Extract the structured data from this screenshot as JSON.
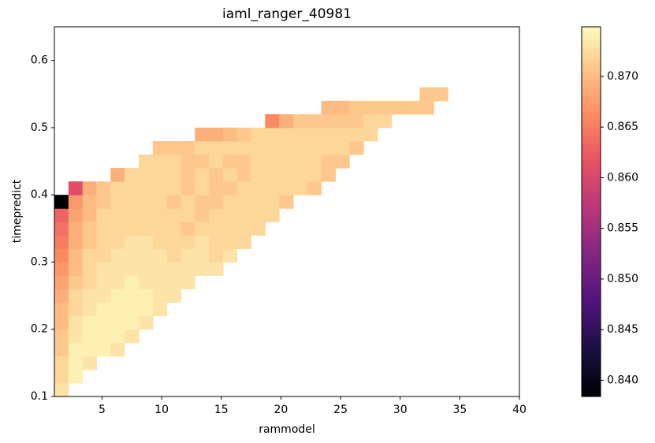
{
  "chart_data": {
    "type": "heatmap",
    "title": "iaml_ranger_40981",
    "x_label": "rammodel",
    "y_label": "timepredict",
    "x": [
      1.59,
      2.77,
      3.95,
      5.12,
      6.3,
      7.48,
      8.66,
      9.84,
      11.01,
      12.19,
      13.37,
      14.55,
      15.73,
      16.9,
      18.08,
      19.26,
      20.44,
      21.62,
      22.79,
      23.97,
      25.15,
      26.33,
      27.51,
      28.68,
      29.86,
      31.04,
      32.22,
      33.4
    ],
    "y": [
      0.11,
      0.13,
      0.15,
      0.17,
      0.19,
      0.21,
      0.23,
      0.25,
      0.27,
      0.29,
      0.31,
      0.33,
      0.35,
      0.37,
      0.39,
      0.41,
      0.43,
      0.45,
      0.47,
      0.49,
      0.51,
      0.53,
      0.55
    ],
    "z": [
      [
        0.873,
        null,
        null,
        null,
        null,
        null,
        null,
        null,
        null,
        null,
        null,
        null,
        null,
        null,
        null,
        null,
        null,
        null,
        null,
        null,
        null,
        null,
        null,
        null,
        null,
        null,
        null,
        null
      ],
      [
        0.872,
        0.874,
        null,
        null,
        null,
        null,
        null,
        null,
        null,
        null,
        null,
        null,
        null,
        null,
        null,
        null,
        null,
        null,
        null,
        null,
        null,
        null,
        null,
        null,
        null,
        null,
        null,
        null
      ],
      [
        0.872,
        0.874,
        0.873,
        null,
        null,
        null,
        null,
        null,
        null,
        null,
        null,
        null,
        null,
        null,
        null,
        null,
        null,
        null,
        null,
        null,
        null,
        null,
        null,
        null,
        null,
        null,
        null,
        null
      ],
      [
        0.871,
        0.874,
        0.874,
        0.874,
        0.873,
        null,
        null,
        null,
        null,
        null,
        null,
        null,
        null,
        null,
        null,
        null,
        null,
        null,
        null,
        null,
        null,
        null,
        null,
        null,
        null,
        null,
        null,
        null
      ],
      [
        0.871,
        0.873,
        0.874,
        0.874,
        0.874,
        0.873,
        null,
        null,
        null,
        null,
        null,
        null,
        null,
        null,
        null,
        null,
        null,
        null,
        null,
        null,
        null,
        null,
        null,
        null,
        null,
        null,
        null,
        null
      ],
      [
        0.87,
        0.873,
        0.874,
        0.874,
        0.874,
        0.874,
        0.873,
        null,
        null,
        null,
        null,
        null,
        null,
        null,
        null,
        null,
        null,
        null,
        null,
        null,
        null,
        null,
        null,
        null,
        null,
        null,
        null,
        null
      ],
      [
        0.87,
        0.872,
        0.873,
        0.874,
        0.874,
        0.874,
        0.874,
        0.873,
        null,
        null,
        null,
        null,
        null,
        null,
        null,
        null,
        null,
        null,
        null,
        null,
        null,
        null,
        null,
        null,
        null,
        null,
        null,
        null
      ],
      [
        0.869,
        0.872,
        0.873,
        0.873,
        0.874,
        0.874,
        0.874,
        0.873,
        0.873,
        null,
        null,
        null,
        null,
        null,
        null,
        null,
        null,
        null,
        null,
        null,
        null,
        null,
        null,
        null,
        null,
        null,
        null,
        null
      ],
      [
        0.868,
        0.871,
        0.872,
        0.873,
        0.873,
        0.874,
        0.873,
        0.873,
        0.873,
        0.873,
        null,
        null,
        null,
        null,
        null,
        null,
        null,
        null,
        null,
        null,
        null,
        null,
        null,
        null,
        null,
        null,
        null,
        null
      ],
      [
        0.867,
        0.87,
        0.872,
        0.873,
        0.873,
        0.873,
        0.873,
        0.873,
        0.873,
        0.873,
        0.873,
        0.873,
        null,
        null,
        null,
        null,
        null,
        null,
        null,
        null,
        null,
        null,
        null,
        null,
        null,
        null,
        null,
        null
      ],
      [
        0.866,
        0.87,
        0.872,
        0.872,
        0.873,
        0.873,
        0.873,
        0.873,
        0.872,
        0.873,
        0.873,
        0.872,
        0.873,
        null,
        null,
        null,
        null,
        null,
        null,
        null,
        null,
        null,
        null,
        null,
        null,
        null,
        null,
        null
      ],
      [
        0.865,
        0.869,
        0.871,
        0.872,
        0.872,
        0.873,
        0.873,
        0.872,
        0.872,
        0.872,
        0.873,
        0.872,
        0.872,
        0.872,
        null,
        null,
        null,
        null,
        null,
        null,
        null,
        null,
        null,
        null,
        null,
        null,
        null,
        null
      ],
      [
        0.864,
        0.869,
        0.871,
        0.872,
        0.872,
        0.872,
        0.872,
        0.872,
        0.872,
        0.871,
        0.872,
        0.872,
        0.872,
        0.872,
        0.872,
        null,
        null,
        null,
        null,
        null,
        null,
        null,
        null,
        null,
        null,
        null,
        null,
        null
      ],
      [
        0.863,
        0.868,
        0.87,
        0.872,
        0.872,
        0.872,
        0.872,
        0.872,
        0.872,
        0.872,
        0.871,
        0.872,
        0.872,
        0.872,
        0.872,
        0.872,
        null,
        null,
        null,
        null,
        null,
        null,
        null,
        null,
        null,
        null,
        null,
        null
      ],
      [
        0.838,
        0.867,
        0.87,
        0.871,
        0.872,
        0.872,
        0.872,
        0.872,
        0.871,
        0.872,
        0.871,
        0.871,
        0.872,
        0.872,
        0.872,
        0.872,
        0.871,
        null,
        null,
        null,
        null,
        null,
        null,
        null,
        null,
        null,
        null,
        null
      ],
      [
        null,
        0.861,
        0.869,
        0.871,
        0.872,
        0.872,
        0.872,
        0.872,
        0.872,
        0.871,
        0.872,
        0.871,
        0.871,
        0.872,
        0.872,
        0.872,
        0.872,
        0.872,
        0.871,
        null,
        null,
        null,
        null,
        null,
        null,
        null,
        null,
        null
      ],
      [
        null,
        null,
        null,
        null,
        0.869,
        0.872,
        0.872,
        0.872,
        0.872,
        0.871,
        0.872,
        0.871,
        0.872,
        0.871,
        0.872,
        0.872,
        0.872,
        0.872,
        0.872,
        0.871,
        null,
        null,
        null,
        null,
        null,
        null,
        null,
        null
      ],
      [
        null,
        null,
        null,
        null,
        null,
        null,
        0.872,
        0.872,
        0.872,
        0.871,
        0.871,
        0.872,
        0.871,
        0.871,
        0.872,
        0.872,
        0.872,
        0.872,
        0.872,
        0.871,
        0.871,
        null,
        null,
        null,
        null,
        null,
        null,
        null
      ],
      [
        null,
        null,
        null,
        null,
        null,
        null,
        null,
        0.871,
        0.871,
        0.871,
        0.872,
        0.872,
        0.872,
        0.872,
        0.872,
        0.872,
        0.872,
        0.872,
        0.872,
        0.872,
        0.872,
        0.871,
        null,
        null,
        null,
        null,
        null,
        null
      ],
      [
        null,
        null,
        null,
        null,
        null,
        null,
        null,
        null,
        null,
        null,
        0.869,
        0.869,
        0.87,
        0.871,
        0.872,
        0.872,
        0.872,
        0.872,
        0.872,
        0.872,
        0.872,
        0.872,
        0.872,
        null,
        null,
        null,
        null,
        null
      ],
      [
        null,
        null,
        null,
        null,
        null,
        null,
        null,
        null,
        null,
        null,
        null,
        null,
        null,
        null,
        null,
        0.866,
        0.869,
        0.871,
        0.871,
        0.871,
        0.871,
        0.871,
        0.872,
        0.872,
        null,
        null,
        null,
        null
      ],
      [
        null,
        null,
        null,
        null,
        null,
        null,
        null,
        null,
        null,
        null,
        null,
        null,
        null,
        null,
        null,
        null,
        null,
        null,
        null,
        0.87,
        0.87,
        0.871,
        0.871,
        0.871,
        0.871,
        0.871,
        0.871,
        null
      ],
      [
        null,
        null,
        null,
        null,
        null,
        null,
        null,
        null,
        null,
        null,
        null,
        null,
        null,
        null,
        null,
        null,
        null,
        null,
        null,
        null,
        null,
        null,
        null,
        null,
        null,
        null,
        0.871,
        0.871
      ]
    ],
    "xlim": [
      1,
      40
    ],
    "xticks": [
      5,
      10,
      15,
      20,
      25,
      30,
      35,
      40
    ],
    "ylim": [
      0.1,
      0.65
    ],
    "yticks": [
      0.1,
      0.2,
      0.3,
      0.4,
      0.5,
      0.6
    ],
    "colormap": "magma",
    "clim": [
      0.8384,
      0.8749
    ],
    "cticks": [
      {
        "value": 0.84,
        "label": "0.840"
      },
      {
        "value": 0.845,
        "label": "0.845"
      },
      {
        "value": 0.85,
        "label": "0.850"
      },
      {
        "value": 0.855,
        "label": "0.855"
      },
      {
        "value": 0.86,
        "label": "0.860"
      },
      {
        "value": 0.865,
        "label": "0.865"
      },
      {
        "value": 0.87,
        "label": "0.870"
      }
    ]
  }
}
